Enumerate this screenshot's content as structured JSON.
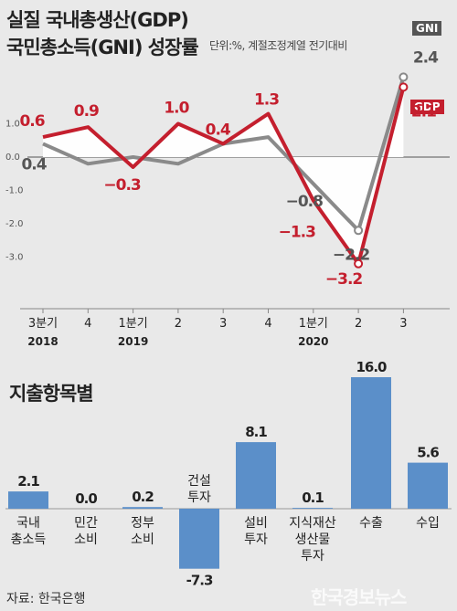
{
  "header": {
    "title_line1": "실질 국내총생산(GDP)",
    "title_line2": "국민총소득(GNI) 성장률",
    "unit": "단위:%, 계절조정계열 전기대비"
  },
  "legend": {
    "gni": "GNI",
    "gdp": "GDP"
  },
  "section2_title": "지출항목별",
  "source": "자료: 한국은행",
  "watermark": "한국경보뉴스",
  "chart_data": [
    {
      "type": "line",
      "x_ticks": [
        "3분기",
        "4",
        "1분기",
        "2",
        "3",
        "4",
        "1분기",
        "2",
        "3"
      ],
      "year_labels": [
        {
          "label": "2018",
          "at": 0
        },
        {
          "label": "2019",
          "at": 2
        },
        {
          "label": "2020",
          "at": 6
        }
      ],
      "y_ticks": [
        "1.0",
        "0.0",
        "-1.0",
        "-2.0",
        "-3.0"
      ],
      "y_tick_values": [
        1,
        0,
        -1,
        -2,
        -3
      ],
      "ylim": [
        -3.8,
        2.8
      ],
      "series": [
        {
          "name": "GDP",
          "color": "#c41f2e",
          "values": [
            0.6,
            0.9,
            -0.3,
            1.0,
            0.4,
            1.3,
            -1.3,
            -3.2,
            2.1
          ],
          "labels": [
            "0.6",
            "0.9",
            "−0.3",
            "1.0",
            "0.4",
            "1.3",
            "−1.3",
            "−3.2",
            "2.1"
          ]
        },
        {
          "name": "GNI",
          "color": "#8a8a8a",
          "values": [
            0.4,
            -0.2,
            0.0,
            -0.2,
            0.4,
            0.6,
            -0.8,
            -2.2,
            2.4
          ],
          "labels": [
            "0.4",
            "",
            "",
            "",
            "",
            "",
            "−0.8",
            "−2.2",
            "2.4"
          ]
        }
      ]
    },
    {
      "type": "bar",
      "categories": [
        "국내\n총소득",
        "민간\n소비",
        "정부\n소비",
        "건설\n투자",
        "설비\n투자",
        "지식재산\n생산물\n투자",
        "수출",
        "수입"
      ],
      "values": [
        2.1,
        0.0,
        0.2,
        -7.3,
        8.1,
        0.1,
        16.0,
        5.6
      ],
      "value_labels": [
        "2.1",
        "0.0",
        "0.2",
        "-7.3",
        "8.1",
        "0.1",
        "16.0",
        "5.6"
      ],
      "color": "#5b8fc9"
    }
  ]
}
